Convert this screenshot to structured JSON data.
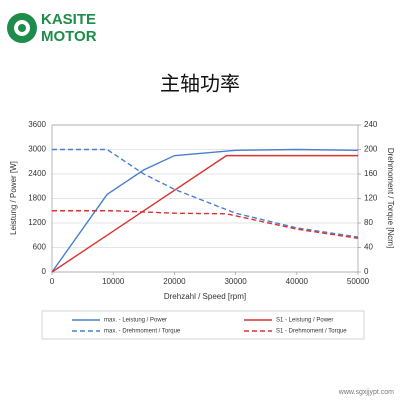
{
  "logo": {
    "line1": "KASITE",
    "line2": "MOTOR"
  },
  "chart_data": {
    "type": "line",
    "title": "主轴功率",
    "xlabel": "Drehzahl / Speed [rpm]",
    "ylabel": "Leistung / Power [W]",
    "y2label": "Drehmoment / Torque [Ncm]",
    "xlim": [
      0,
      50000
    ],
    "xticks": [
      0,
      10000,
      20000,
      30000,
      40000,
      50000
    ],
    "ylim": [
      0,
      3600
    ],
    "yticks": [
      0,
      600,
      1200,
      1800,
      2400,
      3000,
      3600
    ],
    "y2lim": [
      0,
      240
    ],
    "y2ticks": [
      0,
      40,
      80,
      120,
      160,
      200,
      240
    ],
    "grid": true,
    "series": [
      {
        "name": "max. - Leistung / Power",
        "color": "#4a7fcf",
        "dash": false,
        "axis": "y",
        "x": [
          0,
          9000,
          15000,
          20000,
          30000,
          40000,
          50000
        ],
        "values": [
          0,
          1900,
          2500,
          2850,
          2980,
          3000,
          2980
        ]
      },
      {
        "name": "S1 - Leistung / Power",
        "color": "#d93232",
        "dash": false,
        "axis": "y",
        "x": [
          0,
          28500,
          50000
        ],
        "values": [
          0,
          2850,
          2850
        ]
      },
      {
        "name": "max. - Drehmoment / Torque",
        "color": "#4a7fcf",
        "dash": true,
        "axis": "y2",
        "x": [
          0,
          9000,
          15000,
          20000,
          30000,
          40000,
          50000
        ],
        "values": [
          200,
          200,
          160,
          135,
          96,
          72,
          57
        ]
      },
      {
        "name": "S1 - Drehmoment / Torque",
        "color": "#d93232",
        "dash": true,
        "axis": "y2",
        "x": [
          0,
          10000,
          20000,
          28500,
          40000,
          50000
        ],
        "values": [
          100,
          100,
          96,
          95,
          70,
          55
        ]
      }
    ]
  },
  "watermark": "www.sgxjjypt.com"
}
